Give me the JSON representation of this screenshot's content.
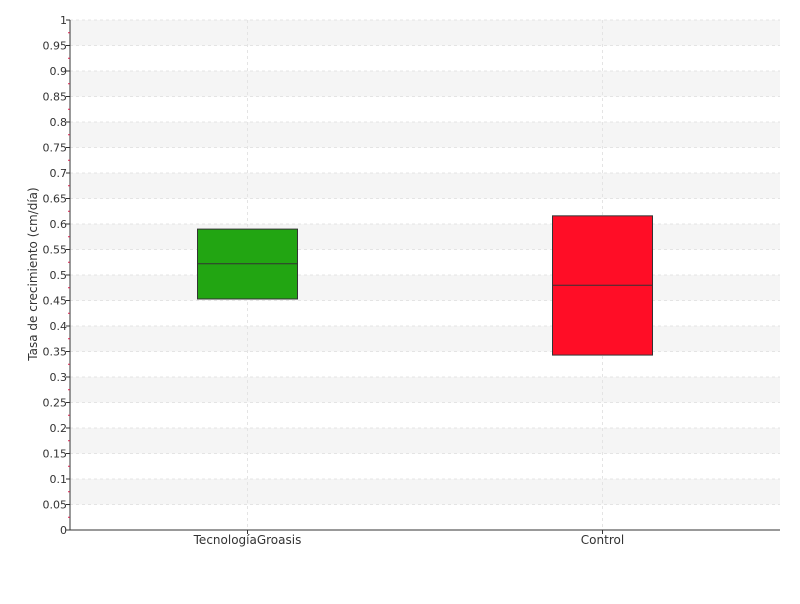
{
  "chart_data": {
    "type": "box",
    "ylabel": "Tasa de crecimiento (cm/día)",
    "xlabel": "",
    "ylim": [
      0,
      1
    ],
    "yticks": [
      "0",
      "0.05",
      "0.1",
      "0.15",
      "0.2",
      "0.25",
      "0.3",
      "0.35",
      "0.4",
      "0.45",
      "0.5",
      "0.55",
      "0.6",
      "0.65",
      "0.7",
      "0.75",
      "0.8",
      "0.85",
      "0.9",
      "0.95",
      "1"
    ],
    "grid": true,
    "categories": [
      "TecnologíaGroasis",
      "Control"
    ],
    "boxes": [
      {
        "category": "TecnologíaGroasis",
        "q1": 0.453,
        "median": 0.522,
        "q3": 0.59,
        "color": "#22a512"
      },
      {
        "category": "Control",
        "q1": 0.343,
        "median": 0.48,
        "q3": 0.616,
        "color": "#ff0d26"
      }
    ]
  }
}
